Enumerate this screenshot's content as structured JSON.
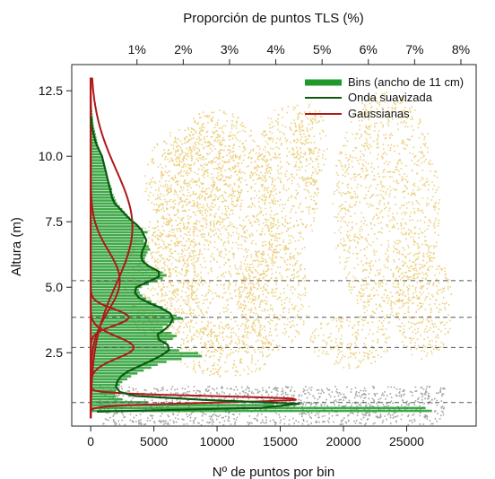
{
  "chart_data": {
    "type": "bar",
    "orientation": "horizontal",
    "xlabel": "Nº de puntos por bin",
    "ylabel": "Altura (m)",
    "x2label": "Proporción de puntos TLS (%)",
    "xlim": [
      -1500,
      30500
    ],
    "ylim": [
      -0.3,
      13.5
    ],
    "x2lim": [
      -0.41,
      8.33
    ],
    "x_ticks": [
      0,
      5000,
      10000,
      15000,
      20000,
      25000
    ],
    "x_tick_labels": [
      "0",
      "5000",
      "10000",
      "15000",
      "20000",
      "25000"
    ],
    "y_ticks": [
      2.5,
      5.0,
      7.5,
      10.0,
      12.5
    ],
    "y_tick_labels": [
      "2.5",
      "5.0",
      "7.5",
      "10.0",
      "12.5"
    ],
    "x2_ticks": [
      1,
      2,
      3,
      4,
      5,
      6,
      7,
      8
    ],
    "x2_tick_labels": [
      "1%",
      "2%",
      "3%",
      "4%",
      "5%",
      "6%",
      "7%",
      "8%"
    ],
    "dashed_lines_y": [
      0.6,
      2.7,
      3.85,
      5.25
    ],
    "grid": false,
    "legend_position": "top-right",
    "background": "point cloud of tree crowns (yellow) and ground vegetation (gray)",
    "colors": {
      "bins": "#1f9a2a",
      "smoothed": "#0b5a10",
      "gaussian": "#b01818",
      "canopy": "#e9c96a",
      "ground": "#9a9a9a"
    },
    "series": [
      {
        "name": "Bins (ancho de 11 cm)",
        "kind": "bars",
        "bin_width_m": 0.11,
        "y": [
          0.28,
          0.39,
          0.5,
          0.61,
          0.72,
          0.83,
          0.94,
          1.05,
          1.16,
          1.27,
          1.38,
          1.49,
          1.6,
          1.71,
          1.82,
          1.93,
          2.04,
          2.15,
          2.26,
          2.37,
          2.48,
          2.59,
          2.7,
          2.81,
          2.92,
          3.03,
          3.14,
          3.25,
          3.36,
          3.47,
          3.58,
          3.69,
          3.8,
          3.91,
          4.02,
          4.13,
          4.24,
          4.35,
          4.46,
          4.57,
          4.68,
          4.79,
          4.9,
          5.01,
          5.12,
          5.23,
          5.34,
          5.45,
          5.56,
          5.67,
          5.78,
          5.89,
          6.0,
          6.11,
          6.22,
          6.33,
          6.44,
          6.55,
          6.66,
          6.77,
          6.88,
          6.99,
          7.1,
          7.21,
          7.32,
          7.43,
          7.54,
          7.65,
          7.76,
          7.87,
          7.98,
          8.09,
          8.2,
          8.31,
          8.42,
          8.53,
          8.64,
          8.75,
          8.86,
          8.97,
          9.08,
          9.19,
          9.3,
          9.41,
          9.52,
          9.63,
          9.74,
          9.85,
          9.96,
          10.07,
          10.18,
          10.29,
          10.4,
          10.51,
          10.62,
          10.73,
          10.84,
          10.95,
          11.06,
          11.17,
          11.28,
          11.39,
          11.5,
          11.61,
          11.72,
          11.83,
          11.94,
          12.05,
          12.16,
          12.27,
          12.38,
          12.49,
          12.6,
          12.71,
          12.82,
          12.93
        ],
        "values": [
          27000,
          26500,
          14500,
          4500,
          2500,
          2000,
          1900,
          2000,
          2100,
          2300,
          2500,
          2900,
          3200,
          3700,
          4200,
          4800,
          5300,
          6000,
          7200,
          8800,
          8500,
          7000,
          6200,
          5800,
          6000,
          6500,
          6800,
          6400,
          5800,
          5700,
          6100,
          6600,
          7300,
          6800,
          6300,
          6000,
          5700,
          5200,
          4800,
          4400,
          4100,
          3900,
          3800,
          4000,
          4600,
          5300,
          5700,
          6000,
          5700,
          5100,
          4700,
          4400,
          4300,
          4300,
          4400,
          4500,
          4700,
          4600,
          4400,
          4200,
          4300,
          4200,
          4500,
          4100,
          3800,
          3500,
          3300,
          3100,
          2900,
          2700,
          2500,
          2300,
          2100,
          2000,
          1900,
          1800,
          1700,
          1700,
          1600,
          1500,
          1400,
          1300,
          1300,
          1200,
          1150,
          1100,
          1000,
          950,
          900,
          850,
          800,
          700,
          600,
          550,
          500,
          450,
          400,
          350,
          300,
          250,
          220,
          200,
          180,
          150,
          130,
          110,
          100,
          90,
          80,
          70,
          60,
          50,
          40,
          30,
          20,
          10
        ]
      },
      {
        "name": "Onda suavizada",
        "kind": "line",
        "y": [
          0.25,
          0.4,
          0.55,
          0.7,
          0.85,
          1.0,
          1.2,
          1.4,
          1.6,
          1.8,
          2.0,
          2.2,
          2.4,
          2.6,
          2.8,
          3.0,
          3.2,
          3.4,
          3.6,
          3.8,
          4.0,
          4.2,
          4.4,
          4.6,
          4.8,
          5.0,
          5.2,
          5.4,
          5.6,
          5.8,
          6.0,
          6.2,
          6.4,
          6.6,
          6.8,
          7.0,
          7.2,
          7.4,
          7.6,
          7.8,
          8.0,
          8.2,
          8.4,
          8.6,
          8.8,
          9.0,
          9.2,
          9.4,
          9.6,
          9.8,
          10.0,
          10.2,
          10.4,
          10.6,
          10.8,
          11.0,
          11.2,
          11.5
        ],
        "x": [
          500,
          13500,
          16500,
          9000,
          3500,
          2300,
          2000,
          2100,
          2400,
          3000,
          3900,
          4800,
          5600,
          6200,
          6100,
          5400,
          5300,
          5900,
          6300,
          6500,
          6300,
          5600,
          4600,
          3800,
          3500,
          3600,
          4500,
          5400,
          5400,
          4600,
          4100,
          4000,
          4100,
          4300,
          4400,
          4200,
          4000,
          3600,
          3100,
          2700,
          2300,
          1900,
          1700,
          1600,
          1500,
          1400,
          1300,
          1200,
          1100,
          1000,
          900,
          700,
          500,
          350,
          250,
          150,
          80,
          40
        ]
      },
      {
        "name": "Gaussianas",
        "kind": "lines",
        "components": [
          {
            "mu": 0.72,
            "sigma": 0.12,
            "amp": 16500
          },
          {
            "mu": 2.7,
            "sigma": 0.42,
            "amp": 3400
          },
          {
            "mu": 3.85,
            "sigma": 0.32,
            "amp": 3000
          },
          {
            "mu": 5.25,
            "sigma": 1.15,
            "amp": 2300
          },
          {
            "mu": 7.3,
            "sigma": 2.2,
            "amp": 3300
          }
        ]
      }
    ]
  }
}
